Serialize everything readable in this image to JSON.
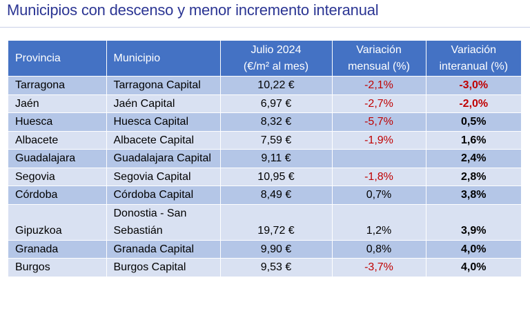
{
  "title": "Municipios con descenso y menor incremento interanual",
  "headers": {
    "provincia": "Provincia",
    "municipio": "Municipio",
    "precio_line1": "Julio 2024",
    "precio_line2": "(€/m² al mes)",
    "mensual_line1": "Variación",
    "mensual_line2": "mensual (%)",
    "interanual_line1": "Variación",
    "interanual_line2": "interanual (%)"
  },
  "rows": [
    {
      "provincia": "Tarragona",
      "municipio": "Tarragona Capital",
      "precio": "10,22 €",
      "mensual": "-2,1%",
      "interanual": "-3,0%"
    },
    {
      "provincia": "Jaén",
      "municipio": "Jaén Capital",
      "precio": "6,97 €",
      "mensual": "-2,7%",
      "interanual": "-2,0%"
    },
    {
      "provincia": "Huesca",
      "municipio": "Huesca Capital",
      "precio": "8,32 €",
      "mensual": "-5,7%",
      "interanual": "0,5%"
    },
    {
      "provincia": "Albacete",
      "municipio": "Albacete Capital",
      "precio": "7,59 €",
      "mensual": "-1,9%",
      "interanual": "1,6%"
    },
    {
      "provincia": "Guadalajara",
      "municipio": "Guadalajara Capital",
      "precio": "9,11 €",
      "mensual": "",
      "interanual": "2,4%"
    },
    {
      "provincia": "Segovia",
      "municipio": "Segovia Capital",
      "precio": "10,95 €",
      "mensual": "-1,8%",
      "interanual": "2,8%"
    },
    {
      "provincia": "Córdoba",
      "municipio": "Córdoba Capital",
      "precio": "8,49 €",
      "mensual": "0,7%",
      "interanual": "3,8%"
    },
    {
      "provincia": "Gipuzkoa",
      "municipio": "Donostia - San Sebastián",
      "precio": "19,72 €",
      "mensual": "1,2%",
      "interanual": "3,9%"
    },
    {
      "provincia": "Granada",
      "municipio": "Granada Capital",
      "precio": "9,90 €",
      "mensual": "0,8%",
      "interanual": "4,0%"
    },
    {
      "provincia": "Burgos",
      "municipio": "Burgos Capital",
      "precio": "9,53 €",
      "mensual": "-3,7%",
      "interanual": "4,0%"
    }
  ],
  "colors": {
    "title": "#2b3593",
    "header_bg": "#4472c4",
    "row_odd": "#b4c6e7",
    "row_even": "#d9e1f2",
    "negative": "#c00000"
  }
}
